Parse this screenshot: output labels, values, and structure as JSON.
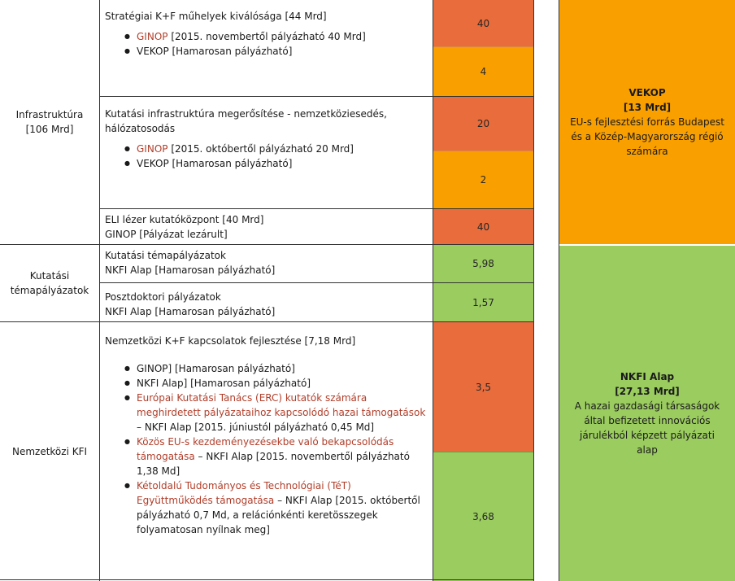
{
  "categories": {
    "infrastruktura": {
      "name": "Infrastruktúra",
      "amount": "[106 Mrd]"
    },
    "kutatasi": {
      "name": "Kutatási",
      "name2": "témapályázatok"
    },
    "nemzetkozi": {
      "name": "Nemzetközi KFI"
    }
  },
  "rows": {
    "strategiai": {
      "title": "Stratégiai K+F műhelyek kiválósága [44 Mrd]",
      "bullets": [
        {
          "link": "GINOP",
          "rest": " [2015. novembertől pályázható 40 Mrd]"
        },
        {
          "link": "",
          "rest": "VEKOP [Hamarosan pályázható]"
        }
      ],
      "values": [
        "40",
        "4"
      ]
    },
    "infra": {
      "title": "Kutatási infrastruktúra megerősítése - nemzetköziesedés, hálózatosodás",
      "bullets": [
        {
          "link": "GINOP",
          "rest": " [2015. októbertől pályázható 20 Mrd]"
        },
        {
          "link": "",
          "rest": "VEKOP [Hamarosan pályázható]"
        }
      ],
      "values": [
        "20",
        "2"
      ]
    },
    "eli": {
      "line1": "ELI lézer kutatóközpont [40 Mrd]",
      "line2": "GINOP [Pályázat lezárult]",
      "value": "40"
    },
    "tema": {
      "line1": "Kutatási témapályázatok",
      "line2": "NKFI Alap [Hamarosan pályázható]",
      "value": "5,98"
    },
    "posztdok": {
      "line1": "Posztdoktori pályázatok",
      "line2": "NKFI Alap [Hamarosan pályázható]",
      "value": "1,57"
    },
    "nemzetkozi": {
      "title": "Nemzetközi K+F kapcsolatok fejlesztése [7,18 Mrd]",
      "b1": "GINOP] [Hamarosan pályázható]",
      "b2": "NKFI Alap] [Hamarosan pályázható]",
      "b3_link": "Európai Kutatási Tanács (ERC) kutatók számára meghirdetett pályázataihoz kapcsolódó hazai támogatások",
      "b3_rest": " – NKFI Alap [2015. júniustól pályázható 0,45 Md]",
      "b4_link": "Közös EU-s kezdeményezésekbe való bekapcsolódás támogatása",
      "b4_rest": " – NKFI Alap [2015. novembertől pályázható 1,38 Md]",
      "b5_link": "Kétoldalú Tudományos és Technológiai (TéT) Együttműködés támogatása",
      "b5_rest": " – NKFI Alap [2015. októbertől pályázható 0,7 Md, a relációnkénti keretösszegek folyamatosan nyílnak meg]",
      "values": [
        "3,5",
        "3,68"
      ]
    }
  },
  "funds": {
    "vekop": {
      "name": "VEKOP",
      "amount": "[13 Mrd]",
      "desc": "EU-s fejlesztési forrás Budapest és a Közép-Magyarország régió számára"
    },
    "nkfi": {
      "name": "NKFI Alap",
      "amount": "[27,13 Mrd]",
      "desc": "A hazai gazdasági társaságok által befizetett innovációs járulékból képzett pályázati alap"
    }
  },
  "colors": {
    "orange_dark": "#e86c3c",
    "orange_light": "#f9a000",
    "green": "#9bcc5f",
    "link_red": "#b13e2a"
  }
}
